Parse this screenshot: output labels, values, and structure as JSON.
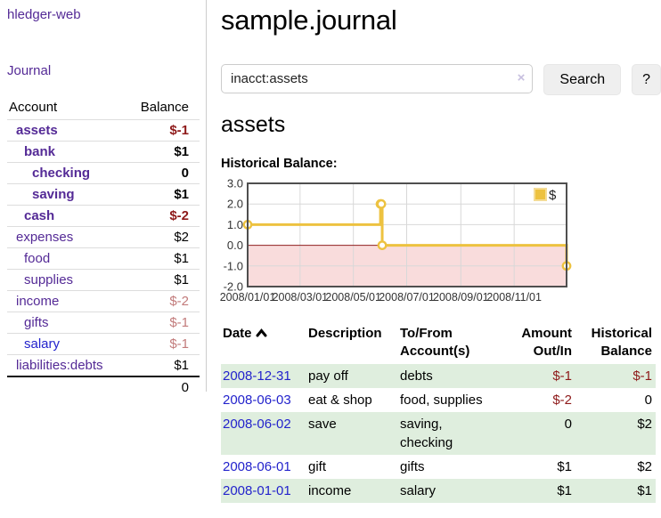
{
  "app": {
    "brand": "hledger-web"
  },
  "sidebar": {
    "journal_label": "Journal",
    "accounts": {
      "header_account": "Account",
      "header_balance": "Balance",
      "rows": [
        {
          "name": "assets",
          "balance": "$-1",
          "level": 0,
          "emphasis": true,
          "tone": "neg",
          "link_tone": "purple"
        },
        {
          "name": "bank",
          "balance": "$1",
          "level": 1,
          "emphasis": true,
          "tone": "",
          "link_tone": "purple"
        },
        {
          "name": "checking",
          "balance": "0",
          "level": 2,
          "emphasis": true,
          "tone": "",
          "link_tone": "purple"
        },
        {
          "name": "saving",
          "balance": "$1",
          "level": 2,
          "emphasis": true,
          "tone": "",
          "link_tone": "purple"
        },
        {
          "name": "cash",
          "balance": "$-2",
          "level": 1,
          "emphasis": true,
          "tone": "neg",
          "link_tone": "purple"
        },
        {
          "name": "expenses",
          "balance": "$2",
          "level": 0,
          "emphasis": false,
          "tone": "",
          "link_tone": "purple"
        },
        {
          "name": "food",
          "balance": "$1",
          "level": 1,
          "emphasis": false,
          "tone": "",
          "link_tone": "purple"
        },
        {
          "name": "supplies",
          "balance": "$1",
          "level": 1,
          "emphasis": false,
          "tone": "",
          "link_tone": "purple"
        },
        {
          "name": "income",
          "balance": "$-2",
          "level": 0,
          "emphasis": false,
          "tone": "negmuted",
          "link_tone": "purple"
        },
        {
          "name": "gifts",
          "balance": "$-1",
          "level": 1,
          "emphasis": false,
          "tone": "negmuted",
          "link_tone": "purple"
        },
        {
          "name": "salary",
          "balance": "$-1",
          "level": 1,
          "emphasis": false,
          "tone": "negmuted",
          "link_tone": "blue"
        },
        {
          "name": "liabilities:debts",
          "balance": "$1",
          "level": 0,
          "emphasis": false,
          "tone": "",
          "link_tone": "purple"
        }
      ],
      "total": "0"
    }
  },
  "main": {
    "title": "sample.journal",
    "search": {
      "value": "inacct:assets",
      "clear_icon": "×",
      "button_label": "Search",
      "help_label": "?"
    },
    "account_heading": "assets",
    "chart_label": "Historical Balance:"
  },
  "chart_data": {
    "type": "line",
    "step": true,
    "title": "Historical Balance",
    "series": [
      {
        "name": "$",
        "color": "#edc240",
        "points": [
          [
            "2008-01-01",
            1
          ],
          [
            "2008-06-01",
            2
          ],
          [
            "2008-06-02",
            2
          ],
          [
            "2008-06-03",
            0
          ],
          [
            "2008-12-31",
            -1
          ]
        ]
      }
    ],
    "x_range": [
      "2008-01-01",
      "2008-12-31"
    ],
    "x_tick_dates": [
      "2008-01-01",
      "2008-03-01",
      "2008-05-01",
      "2008-07-01",
      "2008-09-01",
      "2008-11-01"
    ],
    "x_tick_labels": [
      "2008/01/01",
      "2008/03/01",
      "2008/05/01",
      "2008/07/01",
      "2008/09/01",
      "2008/11/01"
    ],
    "y_ticks": [
      3.0,
      2.0,
      1.0,
      0.0,
      -1.0,
      -2.0
    ],
    "ylim": [
      -2,
      3
    ],
    "legend": {
      "label": "$",
      "position": "top-right"
    },
    "grid": true,
    "negative_region": true,
    "colors": {
      "line": "#edc240",
      "marker_fill": "#ffffff",
      "negative_region": "#f9dcdc",
      "zero_line": "#8f1f1f",
      "gridline": "#d8d8d8",
      "plot_border": "#4f4f4f"
    }
  },
  "register": {
    "headers": {
      "date": "Date",
      "sort": "ascending",
      "description": "Description",
      "accounts": "To/From Account(s)",
      "amount": "Amount Out/In",
      "balance": "Historical Balance"
    },
    "rows": [
      {
        "date": "2008-12-31",
        "description": "pay off",
        "accounts": "debts",
        "amount": "$-1",
        "amount_tone": "neg",
        "balance": "$-1",
        "balance_tone": "neg"
      },
      {
        "date": "2008-06-03",
        "description": "eat & shop",
        "accounts": "food, supplies",
        "amount": "$-2",
        "amount_tone": "neg",
        "balance": "0",
        "balance_tone": ""
      },
      {
        "date": "2008-06-02",
        "description": "save",
        "accounts": "saving, checking",
        "amount": "0",
        "amount_tone": "",
        "balance": "$2",
        "balance_tone": ""
      },
      {
        "date": "2008-06-01",
        "description": "gift",
        "accounts": "gifts",
        "amount": "$1",
        "amount_tone": "",
        "balance": "$2",
        "balance_tone": ""
      },
      {
        "date": "2008-01-01",
        "description": "income",
        "accounts": "salary",
        "amount": "$1",
        "amount_tone": "",
        "balance": "$1",
        "balance_tone": ""
      }
    ]
  }
}
